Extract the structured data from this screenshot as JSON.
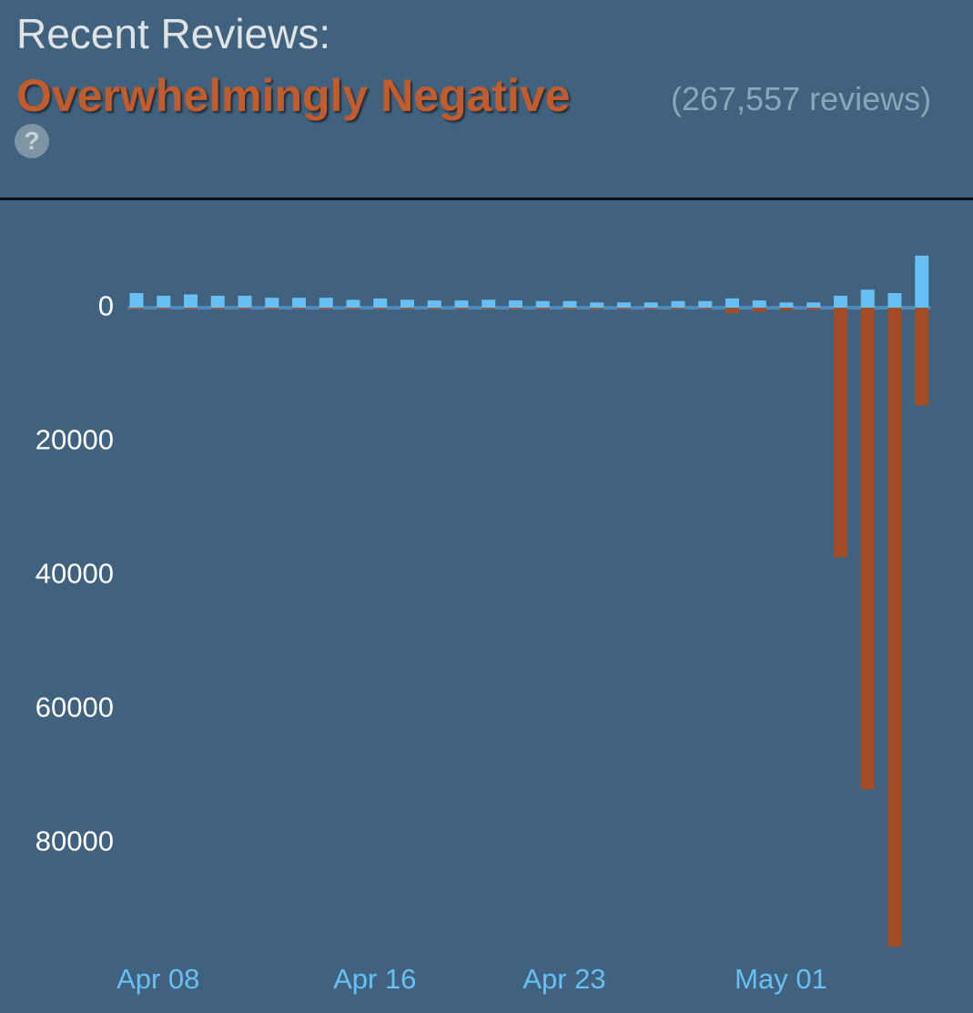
{
  "header": {
    "label": "Recent Reviews:",
    "rating": "Overwhelmingly Negative",
    "count": "(267,557 reviews)",
    "help": "?"
  },
  "chart_data": {
    "type": "bar",
    "categories": [
      null,
      "Apr 08",
      null,
      null,
      null,
      null,
      null,
      null,
      null,
      "Apr 16",
      null,
      null,
      null,
      null,
      null,
      null,
      "Apr 23",
      null,
      null,
      null,
      null,
      null,
      null,
      null,
      "May 01",
      null,
      null,
      null,
      null,
      null
    ],
    "series": [
      {
        "color": "#66c0f4",
        "values": [
          2200,
          1800,
          2000,
          1800,
          1800,
          1500,
          1500,
          1500,
          1200,
          1400,
          1200,
          1100,
          1100,
          1200,
          1100,
          1000,
          1000,
          800,
          800,
          800,
          1000,
          1000,
          1400,
          1100,
          800,
          800,
          1800,
          2700,
          2200,
          7800
        ]
      },
      {
        "color": "#a34c25",
        "values": [
          -200,
          -200,
          -200,
          -200,
          -200,
          -200,
          -200,
          -200,
          -200,
          -200,
          -200,
          -200,
          -200,
          -200,
          -200,
          -200,
          -200,
          -200,
          -200,
          -200,
          -200,
          -200,
          -800,
          -600,
          -400,
          -300,
          -37300,
          -72000,
          -95500,
          -14600
        ]
      }
    ],
    "ylim": [
      -97000,
      12000
    ],
    "yticks": [
      0,
      {
        "value": -20000,
        "label": "20000"
      },
      {
        "value": -40000,
        "label": "40000"
      },
      {
        "value": -60000,
        "label": "60000"
      },
      {
        "value": -80000,
        "label": "80000"
      }
    ],
    "grid": false
  }
}
